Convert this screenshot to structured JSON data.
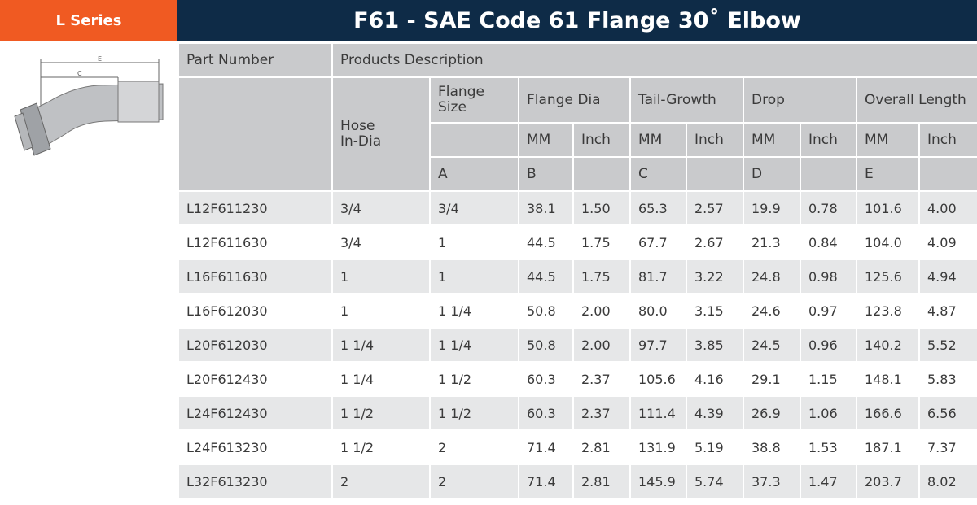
{
  "side_label": "L Series",
  "title": "F61 - SAE Code 61 Flange 30˚ Elbow",
  "table": {
    "part_number": "Part Number",
    "products_description": "Products Description",
    "hose_in_dia": "Hose In-Dia",
    "flange_size": "Flange Size",
    "flange_size_letter": "A",
    "groups": [
      {
        "label": "Flange Dia",
        "units": [
          "MM",
          "Inch"
        ],
        "letter": "B"
      },
      {
        "label": "Tail-Growth",
        "units": [
          "MM",
          "Inch"
        ],
        "letter": "C"
      },
      {
        "label": "Drop",
        "units": [
          "MM",
          "Inch"
        ],
        "letter": "D"
      },
      {
        "label": "Overall Length",
        "units": [
          "MM",
          "Inch"
        ],
        "letter": "E"
      }
    ],
    "rows": [
      [
        "L12F611230",
        "3/4",
        "3/4",
        "38.1",
        "1.50",
        "65.3",
        "2.57",
        "19.9",
        "0.78",
        "101.6",
        "4.00"
      ],
      [
        "L12F611630",
        "3/4",
        "1",
        "44.5",
        "1.75",
        "67.7",
        "2.67",
        "21.3",
        "0.84",
        "104.0",
        "4.09"
      ],
      [
        "L16F611630",
        "1",
        "1",
        "44.5",
        "1.75",
        "81.7",
        "3.22",
        "24.8",
        "0.98",
        "125.6",
        "4.94"
      ],
      [
        "L16F612030",
        "1",
        "1 1/4",
        "50.8",
        "2.00",
        "80.0",
        "3.15",
        "24.6",
        "0.97",
        "123.8",
        "4.87"
      ],
      [
        "L20F612030",
        "1 1/4",
        "1 1/4",
        "50.8",
        "2.00",
        "97.7",
        "3.85",
        "24.5",
        "0.96",
        "140.2",
        "5.52"
      ],
      [
        "L20F612430",
        "1 1/4",
        "1 1/2",
        "60.3",
        "2.37",
        "105.6",
        "4.16",
        "29.1",
        "1.15",
        "148.1",
        "5.83"
      ],
      [
        "L24F612430",
        "1 1/2",
        "1 1/2",
        "60.3",
        "2.37",
        "111.4",
        "4.39",
        "26.9",
        "1.06",
        "166.6",
        "6.56"
      ],
      [
        "L24F613230",
        "1 1/2",
        "2",
        "71.4",
        "2.81",
        "131.9",
        "5.19",
        "38.8",
        "1.53",
        "187.1",
        "7.37"
      ],
      [
        "L32F613230",
        "2",
        "2",
        "71.4",
        "2.81",
        "145.9",
        "5.74",
        "37.3",
        "1.47",
        "203.7",
        "8.02"
      ]
    ]
  }
}
